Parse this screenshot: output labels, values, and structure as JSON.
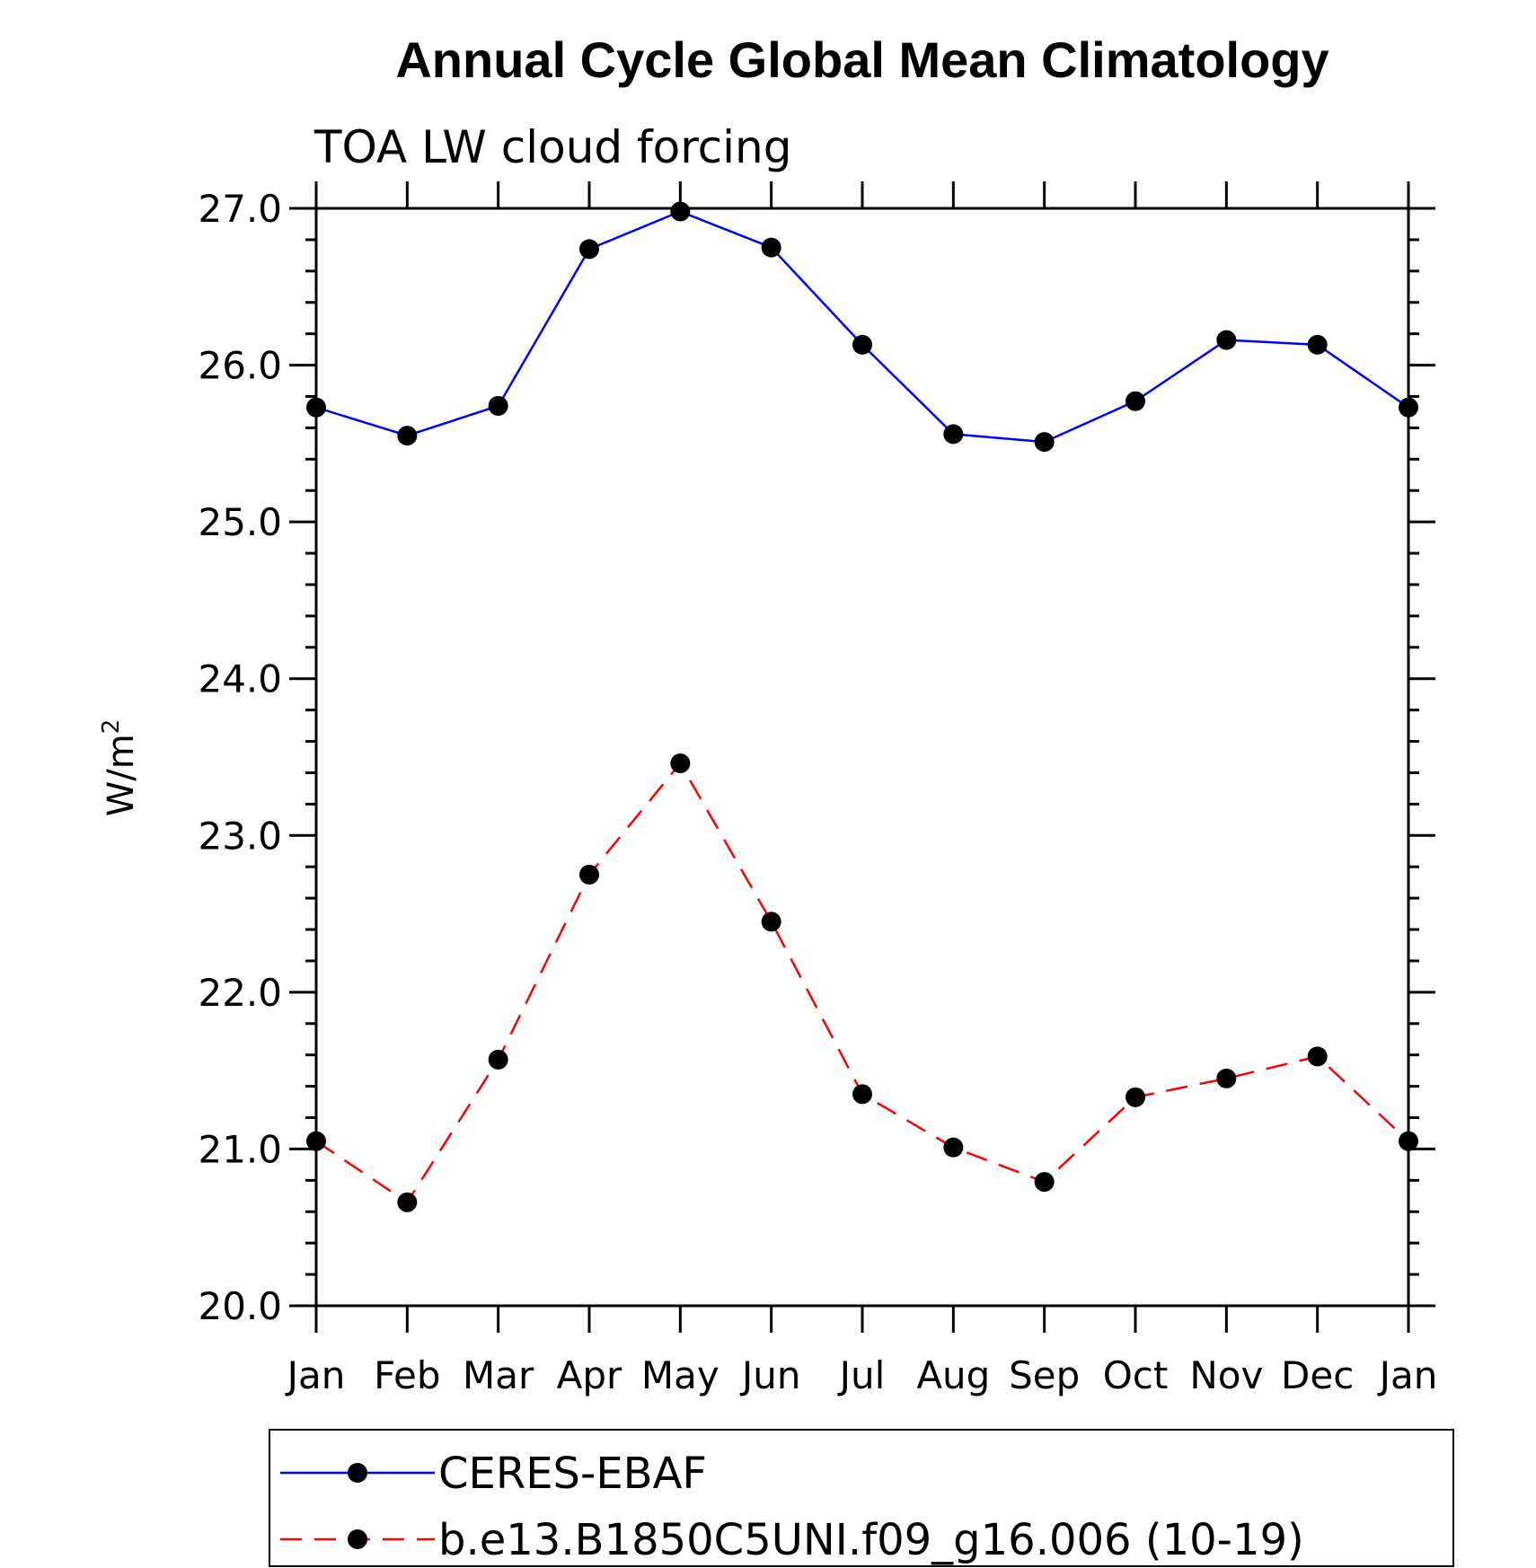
{
  "chart_data": {
    "type": "line",
    "title": "Annual Cycle Global Mean Climatology",
    "subtitle": "TOA LW cloud forcing",
    "xlabel": "",
    "ylabel": "W/m",
    "ylabel_superscript": "2",
    "categories": [
      "Jan",
      "Feb",
      "Mar",
      "Apr",
      "May",
      "Jun",
      "Jul",
      "Aug",
      "Sep",
      "Oct",
      "Nov",
      "Dec",
      "Jan"
    ],
    "ylim": [
      20.0,
      27.0
    ],
    "yticks": [
      "20.0",
      "21.0",
      "22.0",
      "23.0",
      "24.0",
      "25.0",
      "26.0",
      "27.0"
    ],
    "grid": false,
    "legend_position": "bottom",
    "series": [
      {
        "name": "CERES-EBAF",
        "color": "#0000ff",
        "line_style": "solid",
        "marker": "filled-circle",
        "values": [
          25.73,
          25.55,
          25.74,
          26.74,
          26.98,
          26.75,
          26.13,
          25.56,
          25.51,
          25.77,
          26.16,
          26.13,
          25.73
        ]
      },
      {
        "name": "b.e13.B1850C5UNI.f09_g16.006 (10-19)",
        "color": "#ff0000",
        "line_style": "dashed",
        "marker": "filled-circle",
        "values": [
          21.05,
          20.66,
          21.57,
          22.75,
          23.46,
          22.45,
          21.35,
          21.01,
          20.79,
          21.33,
          21.45,
          21.59,
          21.05
        ]
      }
    ]
  }
}
